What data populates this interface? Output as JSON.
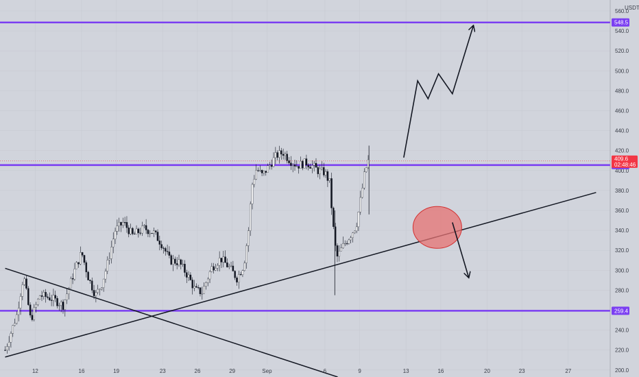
{
  "chart_data": {
    "type": "candlestick",
    "currency": "USDT",
    "ylim": [
      193,
      571
    ],
    "y_ticks": [
      200,
      220,
      240,
      260,
      280,
      300,
      320,
      340,
      360,
      380,
      400,
      420,
      440,
      460,
      480,
      500,
      520,
      540,
      560
    ],
    "x_ticks": [
      {
        "label": "12",
        "i": 1
      },
      {
        "label": "16",
        "i": 5
      },
      {
        "label": "19",
        "i": 8
      },
      {
        "label": "23",
        "i": 12
      },
      {
        "label": "26",
        "i": 15
      },
      {
        "label": "29",
        "i": 18
      },
      {
        "label": "Sep",
        "i": 21
      },
      {
        "label": "6",
        "i": 26
      },
      {
        "label": "9",
        "i": 29
      },
      {
        "label": "13",
        "i": 33
      },
      {
        "label": "16",
        "i": 36
      },
      {
        "label": "20",
        "i": 40
      },
      {
        "label": "23",
        "i": 43
      },
      {
        "label": "27",
        "i": 47
      }
    ],
    "anchor_price": [
      [
        0,
        220
      ],
      [
        1,
        255
      ],
      [
        1.6,
        295
      ],
      [
        2.2,
        250
      ],
      [
        3,
        275
      ],
      [
        4,
        272
      ],
      [
        5,
        265
      ],
      [
        6,
        300
      ],
      [
        6.6,
        318
      ],
      [
        7.2,
        292
      ],
      [
        7.8,
        275
      ],
      [
        8.3,
        285
      ],
      [
        8.8,
        305
      ],
      [
        9.5,
        340
      ],
      [
        10.2,
        348
      ],
      [
        11,
        335
      ],
      [
        12,
        342
      ],
      [
        12.8,
        338
      ],
      [
        13.6,
        325
      ],
      [
        14.2,
        310
      ],
      [
        15,
        308
      ],
      [
        15.8,
        294
      ],
      [
        16.4,
        280
      ],
      [
        17,
        278
      ],
      [
        17.8,
        302
      ],
      [
        18.6,
        312
      ],
      [
        19.4,
        302
      ],
      [
        20,
        292
      ],
      [
        20.6,
        305
      ],
      [
        21,
        340
      ],
      [
        21.3,
        385
      ],
      [
        21.7,
        402
      ],
      [
        22.2,
        395
      ],
      [
        22.8,
        405
      ],
      [
        23.4,
        415
      ],
      [
        24,
        418
      ],
      [
        24.6,
        410
      ],
      [
        25.2,
        405
      ],
      [
        26,
        408
      ],
      [
        26.6,
        404
      ],
      [
        27,
        400
      ],
      [
        27.6,
        398
      ],
      [
        28,
        388
      ],
      [
        28.3,
        345
      ],
      [
        28.6,
        312
      ],
      [
        29.2,
        325
      ],
      [
        29.8,
        335
      ],
      [
        30.3,
        345
      ],
      [
        30.6,
        365
      ],
      [
        31,
        395
      ],
      [
        31.3,
        409.6
      ]
    ],
    "last_price": "409.6",
    "countdown": "02:48:46",
    "levels": [
      {
        "price": 548.5,
        "label": "548.5",
        "color": "#7b3ff2"
      },
      {
        "price": 405.5,
        "label": "405.5",
        "color": "#7b3ff2"
      },
      {
        "price": 259.4,
        "label": "259.4",
        "color": "#7b3ff2"
      }
    ],
    "trendlines": [
      {
        "from": [
          0,
          302
        ],
        "to": [
          28.7,
          193
        ],
        "color": "#131722"
      },
      {
        "from": [
          0,
          213
        ],
        "to": [
          51,
          378
        ],
        "color": "#131722"
      }
    ],
    "projection_path": [
      [
        34.4,
        413
      ],
      [
        35.6,
        490
      ],
      [
        36.5,
        472
      ],
      [
        37.4,
        497
      ],
      [
        38.6,
        477
      ],
      [
        40.4,
        545
      ]
    ],
    "projection_down": [
      [
        38.6,
        348
      ],
      [
        40,
        293
      ]
    ],
    "highlight_ellipse": {
      "center": [
        37.3,
        343
      ],
      "rx_bars": 2.1,
      "ry_price": 21,
      "fill": "#e57373"
    },
    "colors": {
      "up": "#26a69a",
      "down": "#ef5350",
      "body": "#131722",
      "background": "#d1d4dc",
      "last_price": "#f23645"
    }
  }
}
